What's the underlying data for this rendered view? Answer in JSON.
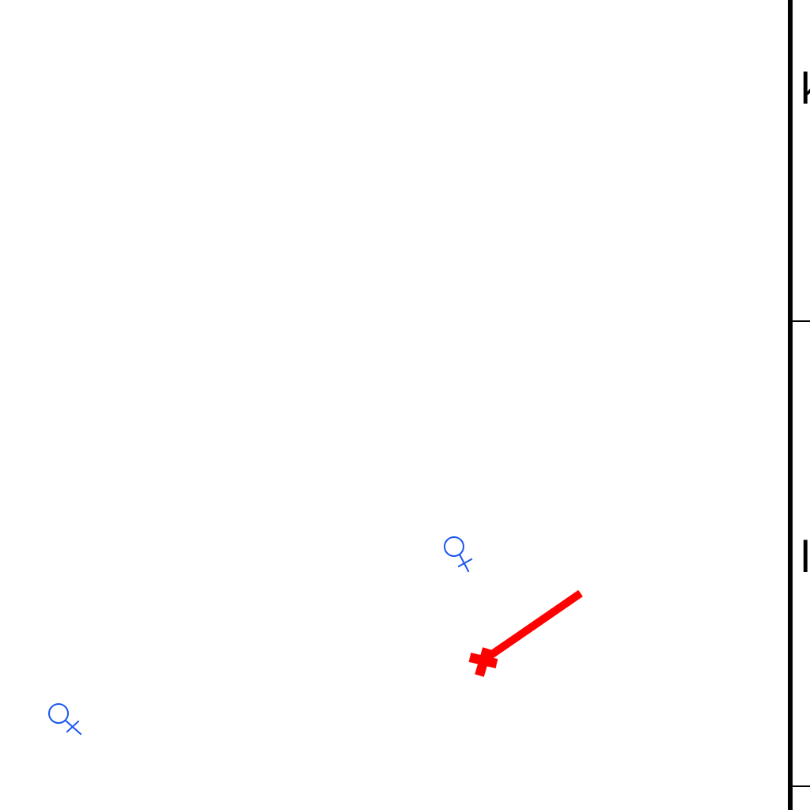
{
  "canvas": {
    "background": "#ffffff"
  },
  "markers": [
    {
      "icon": "female-symbol-icon",
      "color": "#1a56f0"
    },
    {
      "icon": "female-symbol-icon",
      "color": "#1a56f0"
    }
  ],
  "stroke_mark": {
    "icon": "red-stroke-plus-icon",
    "color": "#ff0000"
  },
  "right_panel": {
    "labels": [
      "k",
      "l"
    ]
  }
}
